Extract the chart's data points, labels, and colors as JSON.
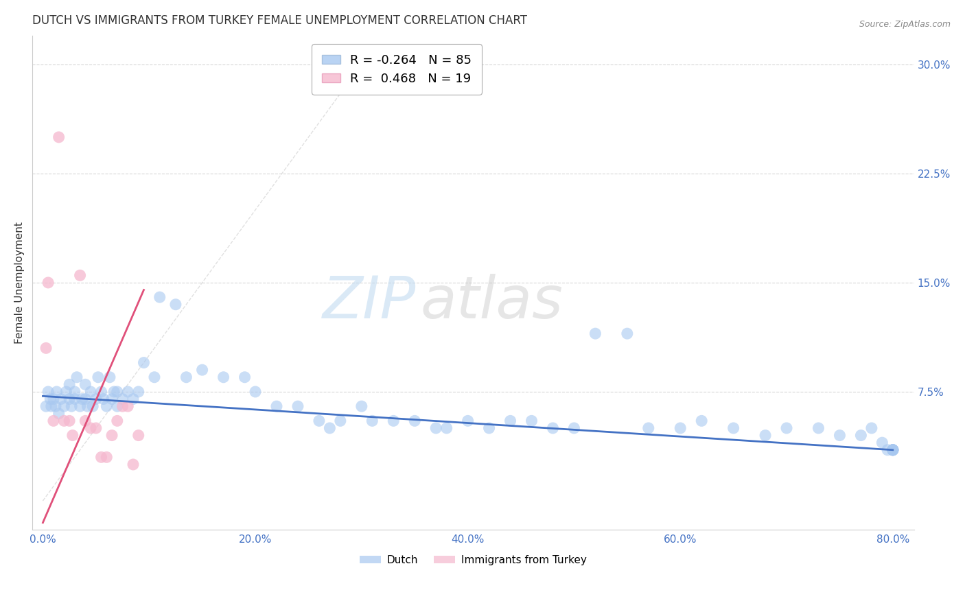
{
  "title": "DUTCH VS IMMIGRANTS FROM TURKEY FEMALE UNEMPLOYMENT CORRELATION CHART",
  "source": "Source: ZipAtlas.com",
  "xlabel_ticks": [
    0,
    20,
    40,
    60,
    80
  ],
  "ylabel_ticks": [
    7.5,
    15.0,
    22.5,
    30.0
  ],
  "ylabel_labels": [
    "7.5%",
    "15.0%",
    "22.5%",
    "30.0%"
  ],
  "xlim": [
    -1.0,
    82.0
  ],
  "ylim": [
    -2.0,
    32.0
  ],
  "watermark_zip": "ZIP",
  "watermark_atlas": "atlas",
  "legend_dutch_R": -0.264,
  "legend_dutch_N": 85,
  "legend_turkey_R": 0.468,
  "legend_turkey_N": 19,
  "dutch_color": "#A8C8F0",
  "turkey_color": "#F5B8CE",
  "dutch_trend_color": "#4472C4",
  "turkey_trend_color": "#E0507A",
  "refline_color": "#CCCCCC",
  "grid_color": "#CCCCCC",
  "title_color": "#333333",
  "axis_label_color": "#4472C4",
  "ylabel_color": "#555555",
  "background_color": "#FFFFFF",
  "dutch_x": [
    0.3,
    0.5,
    0.7,
    0.8,
    1.0,
    1.2,
    1.3,
    1.5,
    1.7,
    2.0,
    2.2,
    2.5,
    2.5,
    2.7,
    3.0,
    3.0,
    3.2,
    3.5,
    3.7,
    4.0,
    4.0,
    4.2,
    4.5,
    4.7,
    5.0,
    5.2,
    5.5,
    5.7,
    6.0,
    6.3,
    6.5,
    6.7,
    7.0,
    7.0,
    7.5,
    8.0,
    8.5,
    9.0,
    9.5,
    10.5,
    11.0,
    12.5,
    13.5,
    15.0,
    17.0,
    19.0,
    20.0,
    22.0,
    24.0,
    26.0,
    27.0,
    28.0,
    30.0,
    31.0,
    33.0,
    35.0,
    37.0,
    38.0,
    40.0,
    42.0,
    44.0,
    46.0,
    48.0,
    50.0,
    52.0,
    55.0,
    57.0,
    60.0,
    62.0,
    65.0,
    68.0,
    70.0,
    73.0,
    75.0,
    77.0,
    78.0,
    79.0,
    79.5,
    80.0,
    80.0,
    80.0,
    80.0,
    80.0,
    80.0,
    80.0
  ],
  "dutch_y": [
    6.5,
    7.5,
    7.0,
    6.5,
    7.0,
    6.5,
    7.5,
    6.0,
    7.0,
    6.5,
    7.5,
    7.0,
    8.0,
    6.5,
    7.0,
    7.5,
    8.5,
    6.5,
    7.0,
    7.0,
    8.0,
    6.5,
    7.5,
    6.5,
    7.0,
    8.5,
    7.5,
    7.0,
    6.5,
    8.5,
    7.0,
    7.5,
    6.5,
    7.5,
    7.0,
    7.5,
    7.0,
    7.5,
    9.5,
    8.5,
    14.0,
    13.5,
    8.5,
    9.0,
    8.5,
    8.5,
    7.5,
    6.5,
    6.5,
    5.5,
    5.0,
    5.5,
    6.5,
    5.5,
    5.5,
    5.5,
    5.0,
    5.0,
    5.5,
    5.0,
    5.5,
    5.5,
    5.0,
    5.0,
    11.5,
    11.5,
    5.0,
    5.0,
    5.5,
    5.0,
    4.5,
    5.0,
    5.0,
    4.5,
    4.5,
    5.0,
    4.0,
    3.5,
    3.5,
    3.5,
    3.5,
    3.5,
    3.5,
    3.5,
    3.5
  ],
  "turkey_x": [
    0.3,
    0.5,
    1.0,
    1.5,
    2.0,
    2.5,
    2.8,
    3.5,
    4.0,
    4.5,
    5.0,
    5.5,
    6.0,
    6.5,
    7.0,
    7.5,
    8.0,
    8.5,
    9.0
  ],
  "turkey_y": [
    10.5,
    15.0,
    5.5,
    25.0,
    5.5,
    5.5,
    4.5,
    15.5,
    5.5,
    5.0,
    5.0,
    3.0,
    3.0,
    4.5,
    5.5,
    6.5,
    6.5,
    2.5,
    4.5
  ],
  "dutch_trend_x": [
    0,
    80
  ],
  "dutch_trend_y": [
    7.2,
    3.5
  ],
  "turkey_trend_x": [
    0,
    9.5
  ],
  "turkey_trend_y": [
    -1.5,
    14.5
  ]
}
